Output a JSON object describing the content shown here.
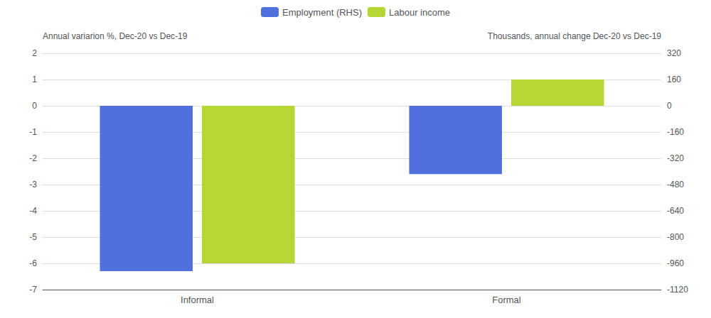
{
  "chart_data": {
    "type": "bar",
    "categories": [
      "Informal",
      "Formal"
    ],
    "series": [
      {
        "name": "Employment (RHS)",
        "values": [
          -1008,
          -416
        ],
        "axis": "y2"
      },
      {
        "name": "Labour income",
        "values": [
          -6.0,
          1.0
        ]
      }
    ],
    "ylabel": "Annual variarion %, Dec-20 vs Dec-19",
    "y2label": "Thousands, annual change Dec-20 vs Dec-19",
    "ylim": [
      -7,
      2
    ],
    "yticks": [
      -7,
      -6,
      -5,
      -4,
      -3,
      -2,
      -1,
      0,
      1,
      2
    ],
    "y2lim": [
      -1120,
      320
    ],
    "y2ticks": [
      -1120,
      -960,
      -800,
      -640,
      -480,
      -320,
      -160,
      0,
      160,
      320
    ],
    "grid": true,
    "legend": "top"
  }
}
